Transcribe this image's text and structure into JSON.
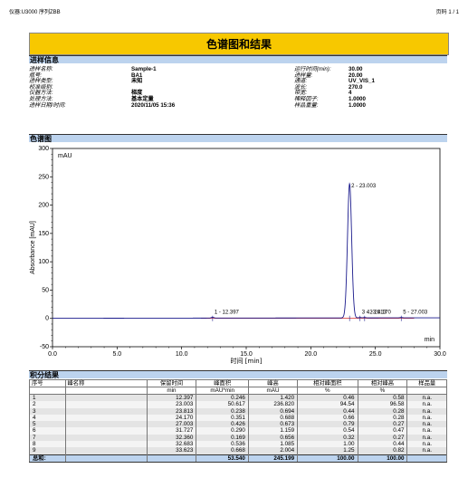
{
  "header": {
    "left": "仪器:U3000   序列ZBB",
    "right": "页码 1 / 1"
  },
  "title": "色谱图和结果",
  "section_injection": "进样信息",
  "info_rows": [
    {
      "k1": "进样名称:",
      "v1": "Sample-1",
      "k2": "运行时间(min):",
      "v2": "30.00"
    },
    {
      "k1": "瓶号:",
      "v1": "BA1",
      "k2": "进样量:",
      "v2": "20.00"
    },
    {
      "k1": "进样类型:",
      "v1": "未知",
      "k2": "通道:",
      "v2": "UV_VIS_1"
    },
    {
      "k1": "校准级别:",
      "v1": "",
      "k2": "波长:",
      "v2": "270.0"
    },
    {
      "k1": "仪器方法:",
      "v1": "梯度",
      "k2": "带宽:",
      "v2": "4"
    },
    {
      "k1": "处理方法:",
      "v1": "基本定量",
      "k2": "稀释因子:",
      "v2": "1.0000"
    },
    {
      "k1": "进样日期/时间:",
      "v1": "2020/11/05 15:36",
      "k2": "样品重量:",
      "v2": "1.0000"
    }
  ],
  "section_chromatogram": "色谱图",
  "section_results": "积分结果",
  "chart_data": {
    "type": "line",
    "unit_label": "mAU",
    "ylabel": "Absorbance [mAU]",
    "xlabel": "时间 [min]",
    "x_unit_label": "min",
    "xlim": [
      0,
      30
    ],
    "ylim": [
      -50,
      300
    ],
    "xticks": [
      "0.0",
      "5.0",
      "10.0",
      "15.0",
      "20.0",
      "25.0",
      "30.0"
    ],
    "yticks": [
      "-50",
      "0",
      "50",
      "100",
      "150",
      "200",
      "250",
      "300"
    ],
    "peaks": [
      {
        "rt": 12.397,
        "height": 1.42,
        "label": "1 - 12.397"
      },
      {
        "rt": 23.003,
        "height": 236.82,
        "label": "2 - 23.003"
      },
      {
        "rt": 23.813,
        "height": 0.694,
        "label": "3 - 23.813"
      },
      {
        "rt": 24.17,
        "height": 0.688,
        "label": "4 - 24.170"
      },
      {
        "rt": 27.003,
        "height": 0.673,
        "label": "5 - 27.003"
      }
    ],
    "line_color": "#1a1a8c",
    "baseline_color": "#cc0000"
  },
  "table": {
    "headers": [
      [
        "序号",
        "峰名称",
        "保留时间",
        "峰面积",
        "峰高",
        "相对峰面积",
        "相对峰高",
        "样品量"
      ],
      [
        "",
        "",
        "min",
        "mAU*min",
        "mAU",
        "%",
        "%",
        ""
      ]
    ],
    "rows": [
      [
        "1",
        "",
        "12.397",
        "0.246",
        "1.420",
        "0.46",
        "0.58",
        "n.a."
      ],
      [
        "2",
        "",
        "23.003",
        "50.617",
        "236.820",
        "94.54",
        "96.58",
        "n.a."
      ],
      [
        "3",
        "",
        "23.813",
        "0.238",
        "0.694",
        "0.44",
        "0.28",
        "n.a."
      ],
      [
        "4",
        "",
        "24.170",
        "0.351",
        "0.688",
        "0.66",
        "0.28",
        "n.a."
      ],
      [
        "5",
        "",
        "27.003",
        "0.426",
        "0.673",
        "0.79",
        "0.27",
        "n.a."
      ],
      [
        "6",
        "",
        "31.727",
        "0.290",
        "1.159",
        "0.54",
        "0.47",
        "n.a."
      ],
      [
        "7",
        "",
        "32.360",
        "0.169",
        "0.656",
        "0.32",
        "0.27",
        "n.a."
      ],
      [
        "8",
        "",
        "32.683",
        "0.536",
        "1.085",
        "1.00",
        "0.44",
        "n.a."
      ],
      [
        "9",
        "",
        "33.623",
        "0.668",
        "2.004",
        "1.25",
        "0.82",
        "n.a."
      ]
    ],
    "total": [
      "总和:",
      "",
      "",
      "53.540",
      "245.199",
      "100.00",
      "100.00",
      ""
    ]
  }
}
